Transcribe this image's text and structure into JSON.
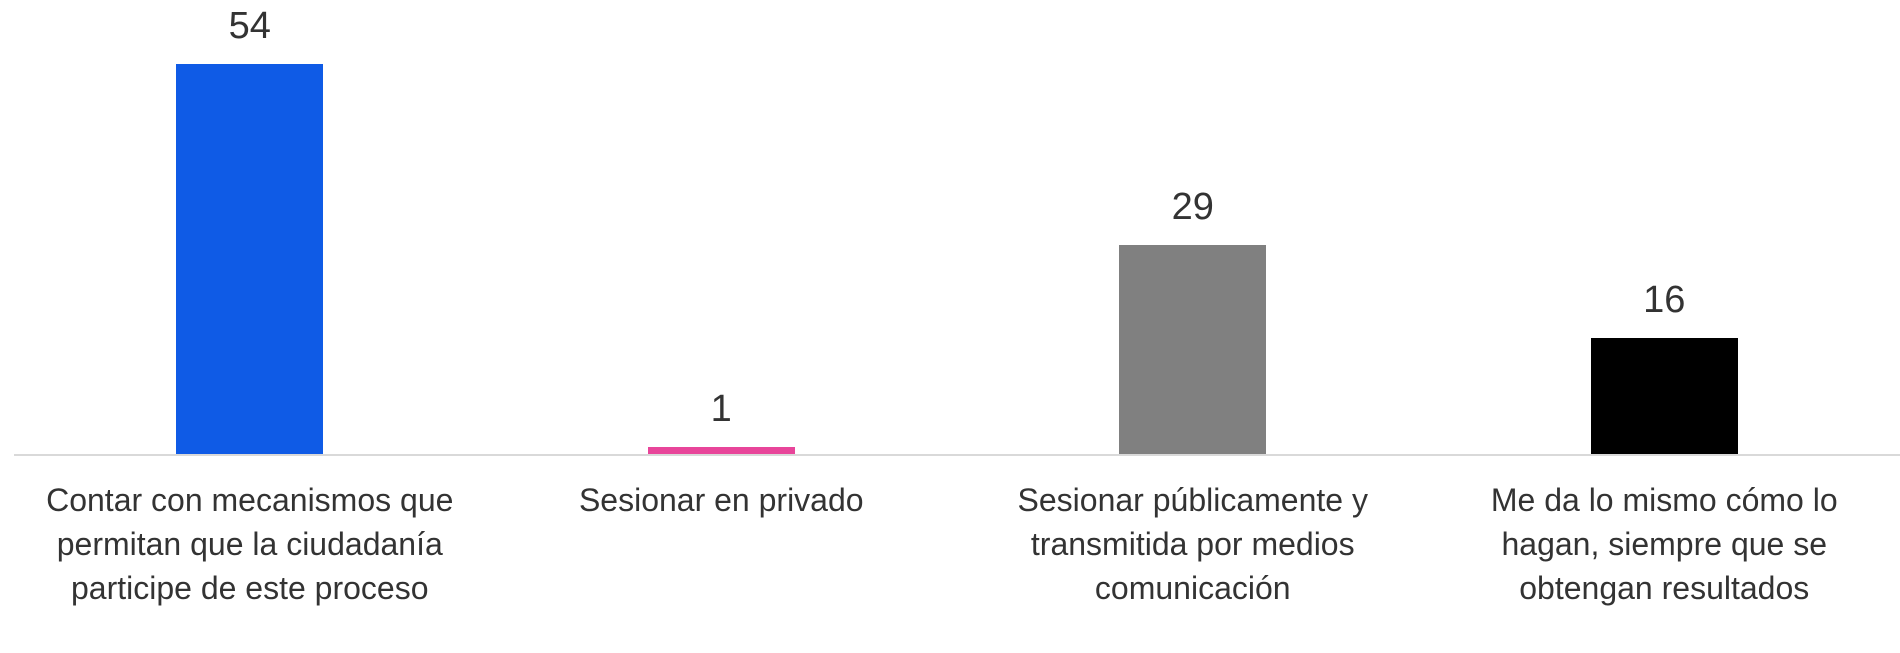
{
  "chart_data": {
    "type": "bar",
    "categories": [
      "Contar con mecanismos que permitan que la ciudadanía participe de este proceso",
      "Sesionar en privado",
      "Sesionar públicamente y transmitida por medios comunicación",
      "Me da lo mismo cómo lo hagan, siempre que se obtengan resultados"
    ],
    "values": [
      54,
      1,
      29,
      16
    ],
    "colors": [
      "#0f5be6",
      "#e8459a",
      "#808080",
      "#000000"
    ]
  }
}
